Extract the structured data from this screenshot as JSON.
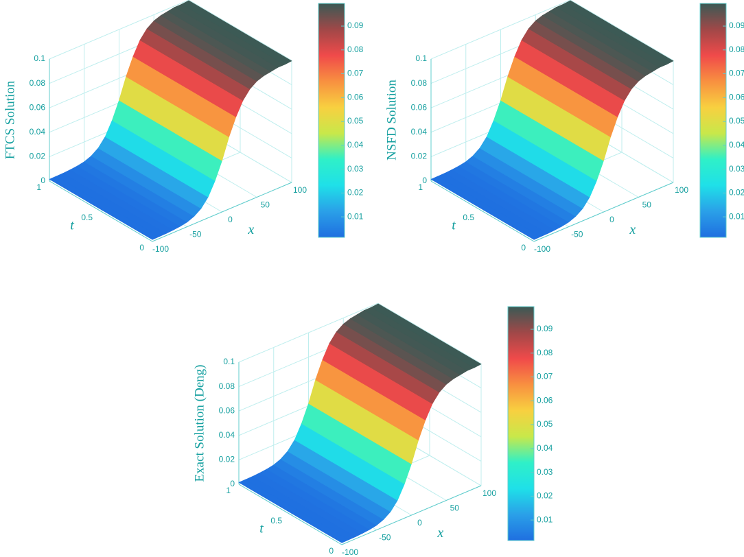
{
  "chart_data": [
    {
      "type": "surface",
      "zlabel": "FTCS Solution",
      "xlabel": "x",
      "ylabel": "t",
      "xlim": [
        -100,
        100
      ],
      "ylim": [
        0,
        1
      ],
      "zlim": [
        0,
        0.1
      ],
      "xticks": [
        -100,
        -50,
        0,
        50,
        100
      ],
      "yticks": [
        0,
        0.5,
        1
      ],
      "zticks": [
        0,
        0.02,
        0.04,
        0.06,
        0.08,
        0.1
      ],
      "clim": [
        0.0014,
        0.0995
      ],
      "cticks": [
        0.01,
        0.02,
        0.03,
        0.04,
        0.05,
        0.06,
        0.07,
        0.08,
        0.09
      ],
      "colormap": [
        "#1f6fe0",
        "#2aa0e8",
        "#1fe0e8",
        "#2ff0c8",
        "#c8e84a",
        "#f8d040",
        "#f89040",
        "#f04a4a",
        "#a04848",
        "#3a5a55"
      ],
      "x": [
        -100,
        -90,
        -80,
        -70,
        -60,
        -50,
        -40,
        -30,
        -20,
        -10,
        0,
        10,
        20,
        30,
        40,
        50,
        60,
        70,
        80,
        90,
        100
      ],
      "values": [
        0.0015,
        0.0016,
        0.0017,
        0.0021,
        0.0027,
        0.0038,
        0.0061,
        0.0101,
        0.017,
        0.028,
        0.042,
        0.059,
        0.073,
        0.084,
        0.091,
        0.095,
        0.097,
        0.098,
        0.099,
        0.099,
        0.0995
      ]
    },
    {
      "type": "surface",
      "zlabel": "NSFD Solution",
      "xlabel": "x",
      "ylabel": "t",
      "xlim": [
        -100,
        100
      ],
      "ylim": [
        0,
        1
      ],
      "zlim": [
        0,
        0.1
      ],
      "xticks": [
        -100,
        -50,
        0,
        50,
        100
      ],
      "yticks": [
        0,
        0.5,
        1
      ],
      "zticks": [
        0,
        0.02,
        0.04,
        0.06,
        0.08,
        0.1
      ],
      "clim": [
        0.0014,
        0.0995
      ],
      "cticks": [
        0.01,
        0.02,
        0.03,
        0.04,
        0.05,
        0.06,
        0.07,
        0.08,
        0.09
      ],
      "colormap": [
        "#1f6fe0",
        "#2aa0e8",
        "#1fe0e8",
        "#2ff0c8",
        "#c8e84a",
        "#f8d040",
        "#f89040",
        "#f04a4a",
        "#a04848",
        "#3a5a55"
      ],
      "x": [
        -100,
        -90,
        -80,
        -70,
        -60,
        -50,
        -40,
        -30,
        -20,
        -10,
        0,
        10,
        20,
        30,
        40,
        50,
        60,
        70,
        80,
        90,
        100
      ],
      "values": [
        0.0015,
        0.0016,
        0.0017,
        0.0021,
        0.0027,
        0.0038,
        0.0061,
        0.0101,
        0.017,
        0.028,
        0.042,
        0.059,
        0.073,
        0.084,
        0.091,
        0.095,
        0.097,
        0.098,
        0.099,
        0.099,
        0.0995
      ]
    },
    {
      "type": "surface",
      "zlabel": "Exact Solution (Deng)",
      "xlabel": "x",
      "ylabel": "t",
      "xlim": [
        -100,
        100
      ],
      "ylim": [
        0,
        1
      ],
      "zlim": [
        0,
        0.1
      ],
      "xticks": [
        -100,
        -50,
        0,
        50,
        100
      ],
      "yticks": [
        0,
        0.5,
        1
      ],
      "zticks": [
        0,
        0.02,
        0.04,
        0.06,
        0.08,
        0.1
      ],
      "clim": [
        0.0014,
        0.0995
      ],
      "cticks": [
        0.01,
        0.02,
        0.03,
        0.04,
        0.05,
        0.06,
        0.07,
        0.08,
        0.09
      ],
      "colormap": [
        "#1f6fe0",
        "#2aa0e8",
        "#1fe0e8",
        "#2ff0c8",
        "#c8e84a",
        "#f8d040",
        "#f89040",
        "#f04a4a",
        "#a04848",
        "#3a5a55"
      ],
      "x": [
        -100,
        -90,
        -80,
        -70,
        -60,
        -50,
        -40,
        -30,
        -20,
        -10,
        0,
        10,
        20,
        30,
        40,
        50,
        60,
        70,
        80,
        90,
        100
      ],
      "values": [
        0.0015,
        0.0016,
        0.0017,
        0.0021,
        0.0027,
        0.0038,
        0.0061,
        0.0101,
        0.017,
        0.028,
        0.042,
        0.059,
        0.073,
        0.084,
        0.091,
        0.095,
        0.097,
        0.098,
        0.099,
        0.099,
        0.0995
      ]
    }
  ]
}
